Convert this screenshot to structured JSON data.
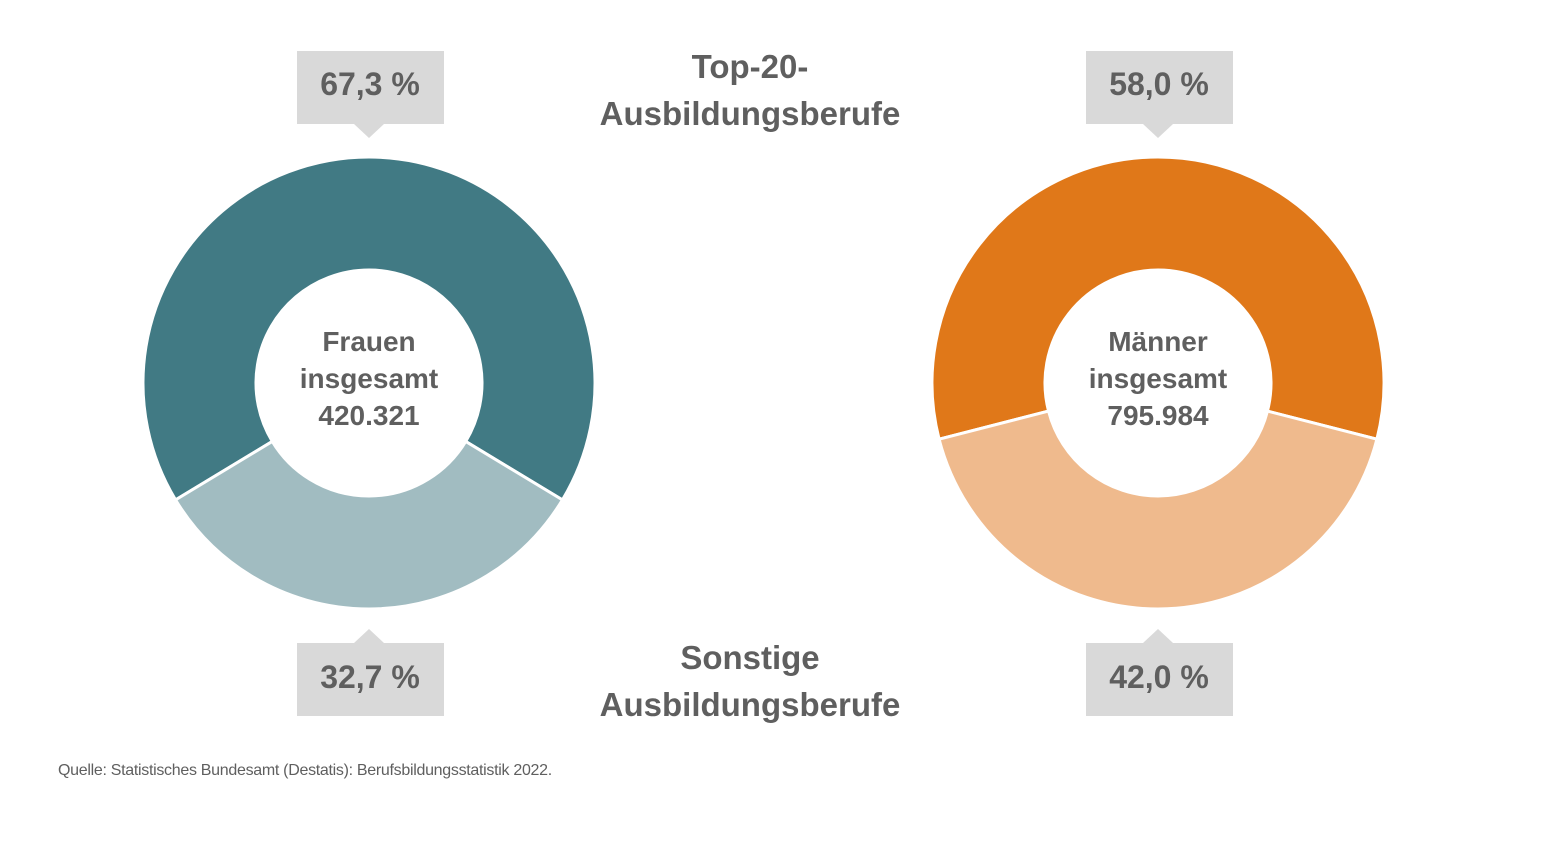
{
  "chart_data": [
    {
      "type": "pie",
      "variant": "donut",
      "center_label": [
        "Frauen",
        "insgesamt",
        "420.321"
      ],
      "total": 420321,
      "slices": [
        {
          "name": "Top-20-Ausbildungsberufe",
          "value": 67.3,
          "label": "67,3 %",
          "color": "#417a84"
        },
        {
          "name": "Sonstige Ausbildungsberufe",
          "value": 32.7,
          "label": "32,7 %",
          "color": "#a1bcc1"
        }
      ]
    },
    {
      "type": "pie",
      "variant": "donut",
      "center_label": [
        "Männer",
        "insgesamt",
        "795.984"
      ],
      "total": 795984,
      "slices": [
        {
          "name": "Top-20-Ausbildungsberufe",
          "value": 58.0,
          "label": "58,0 %",
          "color": "#e07819"
        },
        {
          "name": "Sonstige Ausbildungsberufe",
          "value": 42.0,
          "label": "42,0 %",
          "color": "#efba8d"
        }
      ]
    }
  ],
  "legend": {
    "top": [
      "Top-20-",
      "Ausbildungsberufe"
    ],
    "bottom": [
      "Sonstige",
      "Ausbildungsberufe"
    ]
  },
  "source": "Quelle: Statistisches Bundesamt (Destatis): Berufsbildungsstatistik 2022.",
  "colors": {
    "text": "#5f5f5f",
    "callout": "#d9d9d9"
  }
}
